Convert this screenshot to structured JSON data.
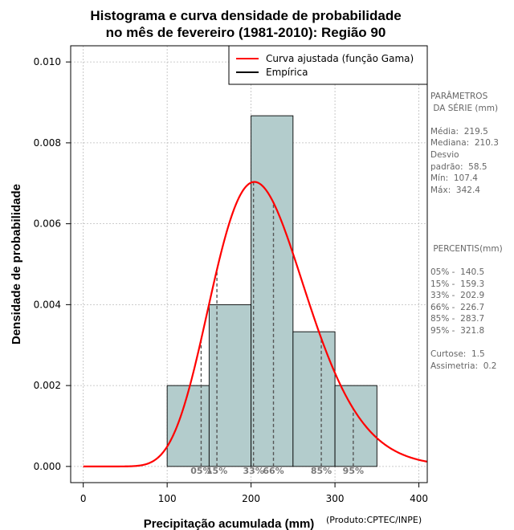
{
  "chart_data": {
    "type": "bar",
    "title_lines": [
      "Histograma e curva densidade de probabilidade",
      "no mês de fevereiro (1981-2010): Região 90"
    ],
    "xlabel": "Precipitação acumulada (mm)",
    "ylabel": "Densidade de probabilidade",
    "credit": "(Produto:CPTEC/INPE)",
    "xlim": [
      -15,
      410
    ],
    "ylim": [
      -0.0004,
      0.0104
    ],
    "x_ticks": [
      0,
      100,
      200,
      300,
      400
    ],
    "x_tick_labels": [
      "0",
      "100",
      "200",
      "300",
      "400"
    ],
    "y_ticks": [
      0.0,
      0.002,
      0.004,
      0.006,
      0.008,
      0.01
    ],
    "y_tick_labels": [
      "0.000",
      "0.002",
      "0.004",
      "0.006",
      "0.008",
      "0.010"
    ],
    "grid": true,
    "bins": [
      {
        "start": 100,
        "end": 150,
        "density": 0.002
      },
      {
        "start": 150,
        "end": 200,
        "density": 0.004
      },
      {
        "start": 200,
        "end": 250,
        "density": 0.00867
      },
      {
        "start": 250,
        "end": 300,
        "density": 0.00333
      },
      {
        "start": 300,
        "end": 350,
        "density": 0.002
      }
    ],
    "gamma_fit": {
      "shape": 14.1,
      "scale": 15.57
    },
    "percentile_lines": [
      {
        "label": "05%",
        "value": 140.5
      },
      {
        "label": "15%",
        "value": 159.3
      },
      {
        "label": "33%",
        "value": 202.9
      },
      {
        "label": "66%",
        "value": 226.7
      },
      {
        "label": "85%",
        "value": 283.7
      },
      {
        "label": "95%",
        "value": 321.8
      }
    ],
    "legend": {
      "position": "top-right",
      "entries": [
        {
          "label": "Curva ajustada (função Gama)",
          "color": "#ff0000"
        },
        {
          "label": "Empírica",
          "color": "#000000"
        }
      ]
    },
    "colors": {
      "bar_fill": "#b3cccc",
      "curve": "#ff0000",
      "percentile_line": "#555555",
      "grid": "#bbbbbb"
    }
  },
  "side_panel": {
    "parametros_lines": [
      "PARÂMETROS",
      " DA SÉRIE (mm)"
    ],
    "stats_lines": [
      "Média:  219.5",
      "Mediana:  210.3",
      "Desvio",
      "padrão:  58.5",
      "Mín:  107.4",
      "Máx:  342.4"
    ],
    "percentis_title": " PERCENTIS(mm)",
    "percentis_lines": [
      "05% -  140.5",
      "15% -  159.3",
      "33% -  202.9",
      "66% -  226.7",
      "85% -  283.7",
      "95% -  321.8"
    ],
    "shape_lines": [
      "Curtose:  1.5",
      "Assimetria:  0.2"
    ]
  }
}
